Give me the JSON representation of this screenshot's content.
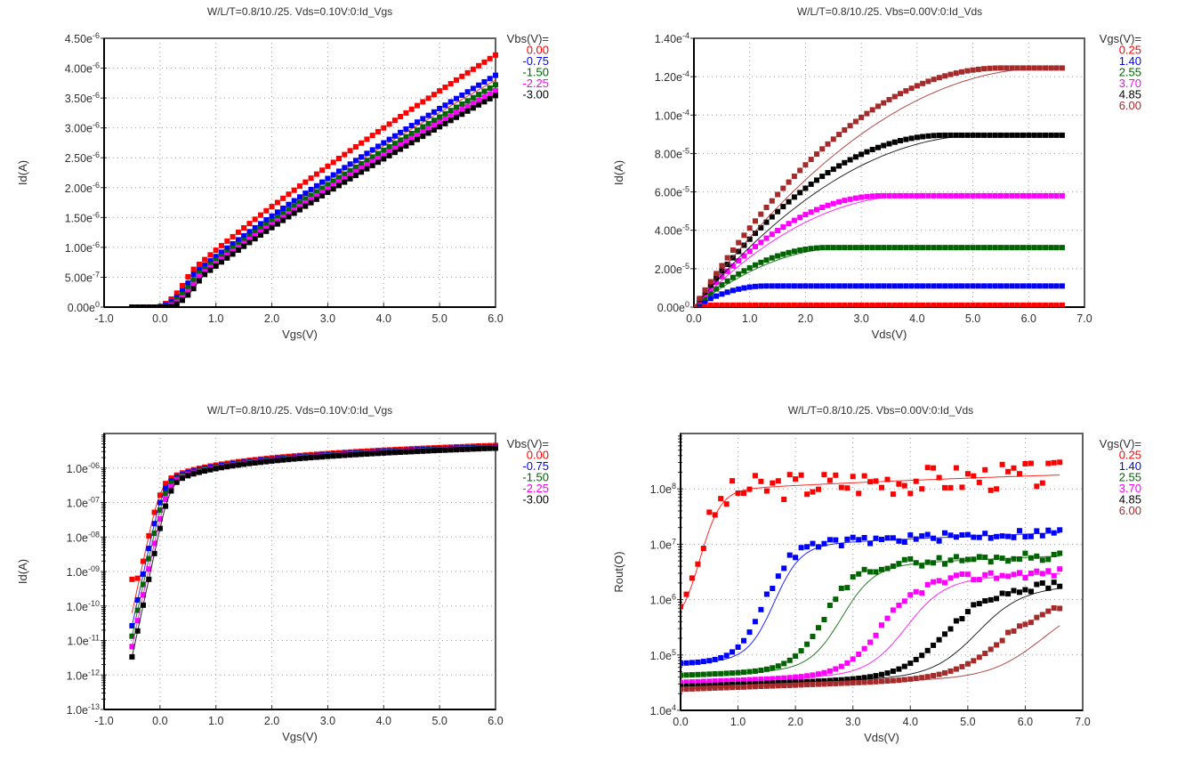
{
  "chart_data": [
    {
      "type": "scatter",
      "title": "W/L/T=0.8/10./25.  Vds=0.10V:0:Id_Vgs",
      "xlabel": "Vgs(V)",
      "ylabel": "Id(A)",
      "xlim": [
        -1.0,
        6.0
      ],
      "ylim": [
        0,
        4.5e-06
      ],
      "yscale": "linear",
      "xticks": [
        "-1.0",
        "0.0",
        "1.0",
        "2.0",
        "3.0",
        "4.0",
        "5.0",
        "6.0"
      ],
      "yticks": [
        {
          "m": "0.00e",
          "e": "0",
          "v": 0
        },
        {
          "m": "5.00e",
          "e": "-7",
          "v": 5e-07
        },
        {
          "m": "1.00e",
          "e": "-6",
          "v": 1e-06
        },
        {
          "m": "1.50e",
          "e": "-6",
          "v": 1.5e-06
        },
        {
          "m": "2.00e",
          "e": "-6",
          "v": 2e-06
        },
        {
          "m": "2.50e",
          "e": "-6",
          "v": 2.5e-06
        },
        {
          "m": "3.00e",
          "e": "-6",
          "v": 3e-06
        },
        {
          "m": "3.50e",
          "e": "-6",
          "v": 3.5e-06
        },
        {
          "m": "4.00e",
          "e": "-6",
          "v": 4e-06
        },
        {
          "m": "4.50e",
          "e": "-6",
          "v": 4.5e-06
        }
      ],
      "grid": true,
      "legend_title": "Vbs(V)=",
      "legend_position": "right",
      "series": [
        {
          "name": "0.00",
          "color": "#ff0000",
          "vth": -0.05,
          "imax": 4.22e-06,
          "model_imax": 3.8e-06
        },
        {
          "name": "-0.75",
          "color": "#0000ff",
          "vth": 0.0,
          "imax": 3.88e-06,
          "model_imax": 3.72e-06
        },
        {
          "name": "-1.50",
          "color": "#006400",
          "vth": 0.05,
          "imax": 3.72e-06,
          "model_imax": 3.66e-06
        },
        {
          "name": "-2.25",
          "color": "#ff00ff",
          "vth": 0.1,
          "imax": 3.62e-06,
          "model_imax": 3.6e-06
        },
        {
          "name": "-3.00",
          "color": "#000000",
          "vth": 0.15,
          "imax": 3.54e-06,
          "model_imax": 3.56e-06
        }
      ]
    },
    {
      "type": "scatter",
      "title": "W/L/T=0.8/10./25.  Vbs=0.00V:0:Id_Vds",
      "xlabel": "Vds(V)",
      "ylabel": "Id(A)",
      "xlim": [
        0.0,
        7.0
      ],
      "ylim": [
        0,
        0.00014
      ],
      "yscale": "linear",
      "xticks": [
        "0.0",
        "1.0",
        "2.0",
        "3.0",
        "4.0",
        "5.0",
        "6.0",
        "7.0"
      ],
      "yticks": [
        {
          "m": "0.00e",
          "e": "0",
          "v": 0
        },
        {
          "m": "2.00e",
          "e": "-5",
          "v": 2e-05
        },
        {
          "m": "4.00e",
          "e": "-5",
          "v": 4e-05
        },
        {
          "m": "6.00e",
          "e": "-5",
          "v": 6e-05
        },
        {
          "m": "8.00e",
          "e": "-5",
          "v": 8e-05
        },
        {
          "m": "1.00e",
          "e": "-4",
          "v": 0.0001
        },
        {
          "m": "1.20e",
          "e": "-4",
          "v": 0.00012
        },
        {
          "m": "1.40e",
          "e": "-4",
          "v": 0.00014
        }
      ],
      "grid": true,
      "legend_title": "Vgs(V)=",
      "legend_position": "right",
      "series": [
        {
          "name": "0.25",
          "color": "#ff0000",
          "idsat": 1e-06,
          "vdsat": 0.3
        },
        {
          "name": "1.40",
          "color": "#0000ff",
          "idsat": 1.1e-05,
          "vdsat": 1.3
        },
        {
          "name": "2.55",
          "color": "#006400",
          "idsat": 3.1e-05,
          "vdsat": 2.4
        },
        {
          "name": "3.70",
          "color": "#ff00ff",
          "idsat": 5.8e-05,
          "vdsat": 3.4
        },
        {
          "name": "4.85",
          "color": "#000000",
          "idsat": 8.95e-05,
          "vdsat": 4.5
        },
        {
          "name": "6.00",
          "color": "#a52a2a",
          "idsat": 0.0001245,
          "vdsat": 5.5
        }
      ]
    },
    {
      "type": "scatter",
      "title": "W/L/T=0.8/10./25.  Vds=0.10V:0:Id_Vgs",
      "xlabel": "Vgs(V)",
      "ylabel": "Id(A)",
      "xlim": [
        -1.0,
        6.0
      ],
      "ylim": [
        1e-13,
        1e-05
      ],
      "yscale": "log",
      "xticks": [
        "-1.0",
        "0.0",
        "1.0",
        "2.0",
        "3.0",
        "4.0",
        "5.0",
        "6.0"
      ],
      "yticks": [
        {
          "m": "1.0e",
          "e": "-13",
          "v": -13
        },
        {
          "m": "1.0e",
          "e": "-12",
          "v": -12
        },
        {
          "m": "1.0e",
          "e": "-11",
          "v": -11
        },
        {
          "m": "1.0e",
          "e": "-10",
          "v": -10
        },
        {
          "m": "1.0e",
          "e": "-09",
          "v": -9
        },
        {
          "m": "1.0e",
          "e": "-08",
          "v": -8
        },
        {
          "m": "1.0e",
          "e": "-07",
          "v": -7
        },
        {
          "m": "1.0e",
          "e": "-06",
          "v": -6
        }
      ],
      "grid": true,
      "legend_title": "Vbs(V)=",
      "legend_position": "right",
      "series": [
        {
          "name": "0.00",
          "color": "#ff0000",
          "shift": 0.0,
          "floor": 3e-10
        },
        {
          "name": "-0.75",
          "color": "#0000ff",
          "shift": 0.05,
          "floor": 2e-13
        },
        {
          "name": "-1.50",
          "color": "#006400",
          "shift": 0.09,
          "floor": 3e-13
        },
        {
          "name": "-2.25",
          "color": "#ff00ff",
          "shift": 0.13,
          "floor": 2e-13
        },
        {
          "name": "-3.00",
          "color": "#000000",
          "shift": 0.17,
          "floor": 2e-13
        }
      ]
    },
    {
      "type": "scatter",
      "title": "W/L/T=0.8/10./25.  Vbs=0.00V:0:Id_Vds",
      "xlabel": "Vds(V)",
      "ylabel": "Rout(O)",
      "xlim": [
        0.0,
        7.0
      ],
      "ylim": [
        10000.0,
        1000000000.0
      ],
      "yscale": "log",
      "xticks": [
        "0.0",
        "1.0",
        "2.0",
        "3.0",
        "4.0",
        "5.0",
        "6.0",
        "7.0"
      ],
      "yticks": [
        {
          "m": "1.0e",
          "e": "4",
          "v": 4
        },
        {
          "m": "1.0e",
          "e": "5",
          "v": 5
        },
        {
          "m": "1.0e",
          "e": "6",
          "v": 6
        },
        {
          "m": "1.0e",
          "e": "7",
          "v": 7
        },
        {
          "m": "1.0e",
          "e": "8",
          "v": 8
        }
      ],
      "grid": true,
      "legend_title": "Vgs(V)=",
      "legend_position": "right",
      "series": [
        {
          "name": "0.25",
          "color": "#ff0000",
          "r0": 300000.0,
          "rsat": 130000000.0,
          "vk": 0.3
        },
        {
          "name": "1.40",
          "color": "#0000ff",
          "r0": 70000.0,
          "rsat": 13000000.0,
          "vk": 1.45
        },
        {
          "name": "2.55",
          "color": "#006400",
          "r0": 43000.0,
          "rsat": 5500000.0,
          "vk": 2.5
        },
        {
          "name": "3.70",
          "color": "#ff00ff",
          "r0": 32000.0,
          "rsat": 3000000.0,
          "vk": 3.5
        },
        {
          "name": "4.85",
          "color": "#000000",
          "r0": 27000.0,
          "rsat": 2000000.0,
          "vk": 4.6
        },
        {
          "name": "6.00",
          "color": "#a52a2a",
          "r0": 24000.0,
          "rsat": 1200000.0,
          "vk": 5.6
        }
      ]
    }
  ]
}
